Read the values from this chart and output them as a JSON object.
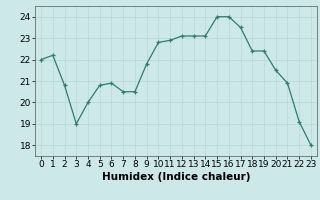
{
  "x": [
    0,
    1,
    2,
    3,
    4,
    5,
    6,
    7,
    8,
    9,
    10,
    11,
    12,
    13,
    14,
    15,
    16,
    17,
    18,
    19,
    20,
    21,
    22,
    23
  ],
  "y": [
    22.0,
    22.2,
    20.8,
    19.0,
    20.0,
    20.8,
    20.9,
    20.5,
    20.5,
    21.8,
    22.8,
    22.9,
    23.1,
    23.1,
    23.1,
    24.0,
    24.0,
    23.5,
    22.4,
    22.4,
    21.5,
    20.9,
    19.1,
    18.0
  ],
  "line_color": "#2e7d6e",
  "marker_color": "#2e7d6e",
  "bg_color": "#cce8e8",
  "grid_color": "#b8d8d8",
  "xlabel": "Humidex (Indice chaleur)",
  "ylim": [
    17.5,
    24.5
  ],
  "xlim": [
    -0.5,
    23.5
  ],
  "yticks": [
    18,
    19,
    20,
    21,
    22,
    23,
    24
  ],
  "xticks": [
    0,
    1,
    2,
    3,
    4,
    5,
    6,
    7,
    8,
    9,
    10,
    11,
    12,
    13,
    14,
    15,
    16,
    17,
    18,
    19,
    20,
    21,
    22,
    23
  ],
  "label_fontsize": 7.5,
  "tick_fontsize": 6.5
}
